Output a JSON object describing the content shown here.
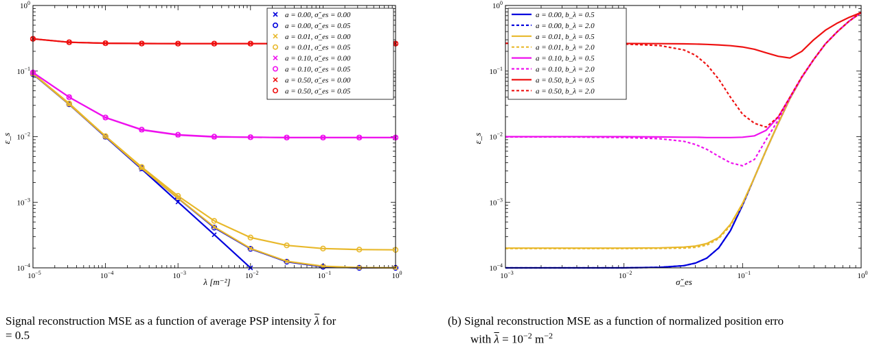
{
  "chart_data": [
    {
      "type": "line",
      "title": "",
      "xscale": "log",
      "yscale": "log",
      "xlim": [
        1e-05,
        1
      ],
      "ylim": [
        0.0001,
        1
      ],
      "xlabel": "λ [m⁻²]",
      "ylabel": "ε_s",
      "xticks": [
        "10^-5",
        "10^-4",
        "10^-3",
        "10^-2",
        "10^-1",
        "10^0"
      ],
      "yticks": [
        "10^-4",
        "10^-3",
        "10^-2",
        "10^-1",
        "10^0"
      ],
      "legend_position": "top-right",
      "x": [
        1e-05,
        3.16e-05,
        0.0001,
        0.000316,
        0.001,
        0.00316,
        0.01,
        0.0316,
        0.1,
        0.316,
        1
      ],
      "series": [
        {
          "name": "a = 0.00,  σ̆_es = 0.00",
          "color": "#0000dd",
          "marker": "x",
          "values": [
            0.09,
            0.031,
            0.0099,
            0.0032,
            0.00101,
            0.00032,
            0.0001,
            null,
            null,
            null,
            null
          ]
        },
        {
          "name": "a = 0.00,  σ̆_es = 0.05",
          "color": "#0000dd",
          "marker": "o",
          "values": [
            0.09,
            0.0312,
            0.01,
            0.0033,
            0.00115,
            0.00041,
            0.000195,
            0.000124,
            0.000104,
            0.0001,
            0.0001
          ]
        },
        {
          "name": "a = 0.01,  σ̆_es = 0.00",
          "color": "#e8b82a",
          "marker": "x",
          "values": [
            0.091,
            0.0312,
            0.0101,
            0.0033,
            0.00116,
            0.00042,
            0.000198,
            0.000126,
            0.000106,
            0.000101,
            0.0001
          ]
        },
        {
          "name": "a = 0.01,  σ̆_es = 0.05",
          "color": "#e8b82a",
          "marker": "o",
          "values": [
            0.092,
            0.032,
            0.0102,
            0.00345,
            0.00125,
            0.00052,
            0.00029,
            0.00022,
            0.000197,
            0.00019,
            0.000188
          ]
        },
        {
          "name": "a = 0.10,  σ̆_es = 0.00",
          "color": "#ee11ee",
          "marker": "x",
          "values": [
            0.095,
            0.04,
            0.0195,
            0.0127,
            0.0106,
            0.0099,
            0.0098,
            0.0097,
            0.0097,
            0.0097,
            0.0097
          ]
        },
        {
          "name": "a = 0.10,  σ̆_es = 0.05",
          "color": "#ee11ee",
          "marker": "o",
          "values": [
            0.095,
            0.04,
            0.0196,
            0.0128,
            0.0107,
            0.01,
            0.0098,
            0.0097,
            0.0097,
            0.0097,
            0.0097
          ]
        },
        {
          "name": "a = 0.50,  σ̆_es = 0.00",
          "color": "#ee1111",
          "marker": "x",
          "values": [
            0.31,
            0.275,
            0.266,
            0.263,
            0.262,
            0.262,
            0.262,
            0.262,
            0.262,
            0.262,
            0.262
          ]
        },
        {
          "name": "a = 0.50,  σ̆_es = 0.05",
          "color": "#ee1111",
          "marker": "o",
          "values": [
            0.31,
            0.275,
            0.266,
            0.263,
            0.262,
            0.262,
            0.262,
            0.262,
            0.262,
            0.262,
            0.262
          ]
        }
      ]
    },
    {
      "type": "line",
      "title": "",
      "xscale": "log",
      "yscale": "log",
      "xlim": [
        0.001,
        1
      ],
      "ylim": [
        0.0001,
        1
      ],
      "xlabel": "σ̆_es",
      "ylabel": "ε_s",
      "xticks": [
        "10^-3",
        "10^-2",
        "10^-1",
        "10^0"
      ],
      "yticks": [
        "10^-4",
        "10^-3",
        "10^-2",
        "10^-1",
        "10^0"
      ],
      "legend_position": "top-left",
      "x": [
        0.001,
        0.0032,
        0.01,
        0.02,
        0.032,
        0.04,
        0.05,
        0.063,
        0.079,
        0.1,
        0.126,
        0.158,
        0.2,
        0.251,
        0.316,
        0.398,
        0.5,
        0.631,
        0.794,
        1.0
      ],
      "series": [
        {
          "name": "a = 0.00, b_λ = 0.5",
          "color": "#0000dd",
          "style": "solid",
          "values": [
            0.0001,
            0.0001,
            0.0001,
            0.000102,
            0.000108,
            0.000118,
            0.000141,
            0.000202,
            0.00037,
            0.0009,
            0.0024,
            0.0062,
            0.016,
            0.038,
            0.08,
            0.15,
            0.26,
            0.4,
            0.58,
            0.78
          ]
        },
        {
          "name": "a = 0.00, b_λ = 2.0",
          "color": "#0000dd",
          "style": "dashed",
          "values": [
            0.0001,
            0.0001,
            0.0001,
            0.000102,
            0.000108,
            0.000118,
            0.000141,
            0.000202,
            0.00037,
            0.0009,
            0.0024,
            0.0062,
            0.016,
            0.038,
            0.08,
            0.15,
            0.26,
            0.4,
            0.58,
            0.78
          ]
        },
        {
          "name": "a = 0.01, b_λ = 0.5",
          "color": "#e8b82a",
          "style": "solid",
          "values": [
            0.0002,
            0.0002,
            0.0002,
            0.000202,
            0.000207,
            0.000215,
            0.000235,
            0.00029,
            0.00046,
            0.00096,
            0.0024,
            0.0062,
            0.016,
            0.038,
            0.08,
            0.15,
            0.26,
            0.4,
            0.58,
            0.78
          ]
        },
        {
          "name": "a = 0.01, b_λ = 2.0",
          "color": "#e8b82a",
          "style": "dashed",
          "values": [
            0.000197,
            0.000197,
            0.000197,
            0.000198,
            0.0002,
            0.000205,
            0.000222,
            0.00028,
            0.00044,
            0.00093,
            0.0024,
            0.0062,
            0.016,
            0.038,
            0.08,
            0.15,
            0.26,
            0.4,
            0.58,
            0.78
          ]
        },
        {
          "name": "a = 0.10, b_λ = 0.5",
          "color": "#ee11ee",
          "style": "solid",
          "values": [
            0.01,
            0.01,
            0.01,
            0.0099,
            0.0098,
            0.0098,
            0.0097,
            0.0097,
            0.0097,
            0.0098,
            0.0103,
            0.0125,
            0.02,
            0.04,
            0.081,
            0.15,
            0.26,
            0.4,
            0.58,
            0.78
          ]
        },
        {
          "name": "a = 0.10, b_λ = 2.0",
          "color": "#ee11ee",
          "style": "dashed",
          "values": [
            0.0099,
            0.0099,
            0.0097,
            0.0093,
            0.0085,
            0.0076,
            0.0064,
            0.005,
            0.004,
            0.0036,
            0.0045,
            0.009,
            0.018,
            0.039,
            0.08,
            0.15,
            0.26,
            0.4,
            0.58,
            0.78
          ]
        },
        {
          "name": "a = 0.50, b_λ = 0.5",
          "color": "#ee1111",
          "style": "solid",
          "values": [
            0.265,
            0.265,
            0.263,
            0.262,
            0.26,
            0.258,
            0.255,
            0.25,
            0.244,
            0.233,
            0.215,
            0.19,
            0.168,
            0.158,
            0.2,
            0.3,
            0.42,
            0.54,
            0.66,
            0.78
          ]
        },
        {
          "name": "a = 0.50, b_λ = 2.0",
          "color": "#ee1111",
          "style": "dashed",
          "values": [
            0.265,
            0.264,
            0.258,
            0.245,
            0.21,
            0.175,
            0.125,
            0.075,
            0.04,
            0.022,
            0.016,
            0.014,
            0.02,
            0.04,
            0.082,
            0.15,
            0.26,
            0.4,
            0.58,
            0.78
          ]
        }
      ]
    }
  ],
  "captions": {
    "left_line1": "Signal reconstruction MSE as a function of average PSP intensity",
    "left_line1_tail": "for",
    "left_line2": "= 0.5",
    "right_line1": "(b) Signal reconstruction MSE as a function of normalized position erro",
    "right_line2_prefix": "with",
    "right_line2_eq": "= 10",
    "right_line2_exp": "−2",
    "right_line2_unit": "m",
    "right_line2_unit_exp": "−2"
  }
}
